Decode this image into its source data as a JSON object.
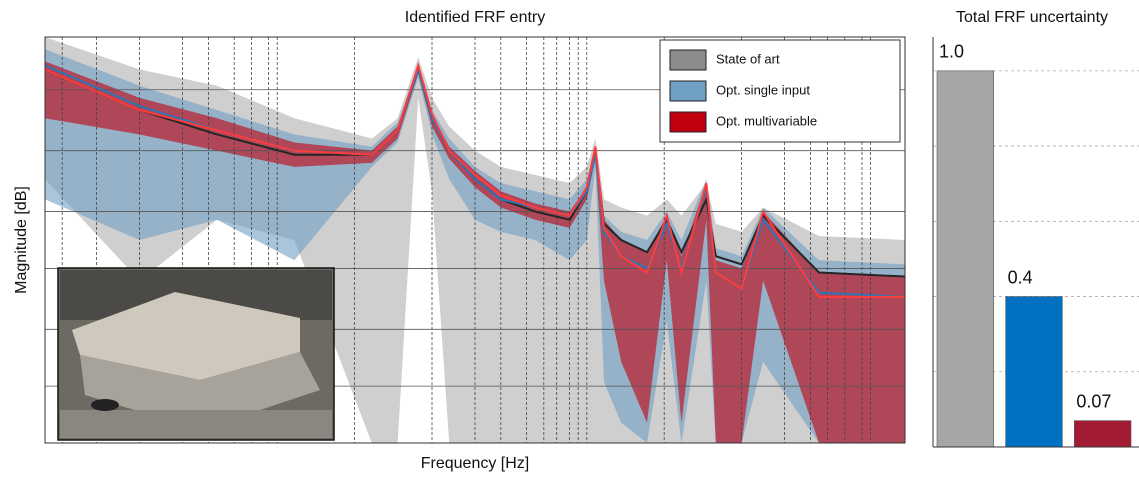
{
  "chart_data": [
    {
      "type": "line",
      "title": "Identified FRF entry",
      "x_label": "Frequency [Hz]",
      "y_label": "Magnitude [dB]",
      "x": [
        0,
        11,
        20,
        29,
        38,
        41,
        43.4,
        45,
        47,
        50,
        53,
        57,
        61,
        63,
        64,
        65,
        67,
        70,
        72.3,
        74,
        76.9,
        78,
        81,
        83.5,
        90,
        100
      ],
      "xlim": [
        0,
        100
      ],
      "ylim": [
        0,
        100
      ],
      "xticks": [
        2,
        6,
        11,
        16,
        19,
        22,
        24,
        26,
        27,
        36,
        45,
        50,
        53,
        56,
        58,
        59.5,
        61,
        62,
        63,
        72,
        81,
        86,
        89,
        91,
        93,
        95,
        96
      ],
      "yticks": [
        14,
        28,
        43,
        57,
        72,
        87
      ],
      "grid": true,
      "legend": "upper right",
      "series": [
        {
          "name": "State of art",
          "color": "#bfbfbf",
          "line_color": "#262626",
          "values": [
            92,
            82,
            76,
            71,
            71,
            77,
            92,
            80,
            72,
            65,
            60,
            57,
            55,
            62,
            72,
            54,
            50,
            47,
            55,
            47,
            60,
            46,
            44,
            56,
            42,
            41
          ],
          "upper": [
            100,
            92,
            88,
            80,
            75,
            80,
            95,
            85,
            78,
            72,
            68,
            66,
            64,
            68,
            75,
            60,
            58,
            56,
            60,
            56,
            64,
            54,
            52,
            58,
            51,
            50
          ],
          "lower": [
            65,
            40,
            55,
            50,
            0,
            0,
            85,
            62,
            0,
            0,
            0,
            0,
            0,
            0,
            0,
            0,
            0,
            0,
            0,
            0,
            0,
            0,
            0,
            0,
            0,
            0
          ]
        },
        {
          "name": "Opt. single input",
          "color": "#6f9fc3",
          "line_color": "#2e75b6",
          "values": [
            93,
            83,
            77,
            72,
            71,
            77,
            92,
            80,
            72,
            65,
            60,
            58,
            56,
            62,
            71,
            52,
            46,
            43,
            54,
            43,
            63,
            42,
            38,
            55,
            37,
            36
          ],
          "upper": [
            97,
            88,
            82,
            76,
            73,
            79,
            93,
            82,
            75,
            68,
            64,
            62,
            60,
            65,
            73,
            56,
            52,
            50,
            57,
            50,
            65,
            48,
            46,
            58,
            45,
            44
          ],
          "lower": [
            60,
            50,
            55,
            45,
            68,
            74,
            90,
            76,
            65,
            55,
            52,
            50,
            45,
            50,
            68,
            15,
            5,
            0,
            30,
            0,
            40,
            0,
            0,
            20,
            0,
            0
          ]
        },
        {
          "name": "Opt. multivariable",
          "color": "#c0000f",
          "line_color": "#ff3b3b",
          "values": [
            92,
            82,
            77,
            72,
            71,
            77,
            93,
            81,
            72,
            66,
            61,
            58,
            56,
            63,
            73,
            53,
            46,
            42,
            56,
            42,
            64,
            42,
            38,
            57,
            36,
            36
          ],
          "upper": [
            94,
            85,
            80,
            74,
            72,
            78,
            93,
            81,
            73,
            67,
            62,
            59,
            57,
            63,
            73,
            55,
            50,
            47,
            56,
            46,
            64,
            45,
            43,
            57,
            42,
            41
          ],
          "lower": [
            80,
            76,
            72,
            68,
            69,
            75,
            91,
            78,
            70,
            63,
            58,
            55,
            53,
            60,
            70,
            40,
            20,
            5,
            45,
            5,
            55,
            0,
            0,
            40,
            0,
            0
          ]
        }
      ]
    },
    {
      "type": "bar",
      "title": "Total FRF uncertainty",
      "categories": [
        null,
        null,
        null
      ],
      "values": [
        1,
        0.4,
        0.07
      ],
      "value_labels": [
        "1.0",
        "0.4",
        "0.07"
      ],
      "colors": [
        "#a6a6a6",
        "#0070c0",
        "#a31a33"
      ],
      "ylim": [
        0,
        1.09
      ],
      "yticks": [
        0,
        0.2,
        0.4,
        0.6,
        0.8,
        1
      ],
      "grid": true
    }
  ]
}
